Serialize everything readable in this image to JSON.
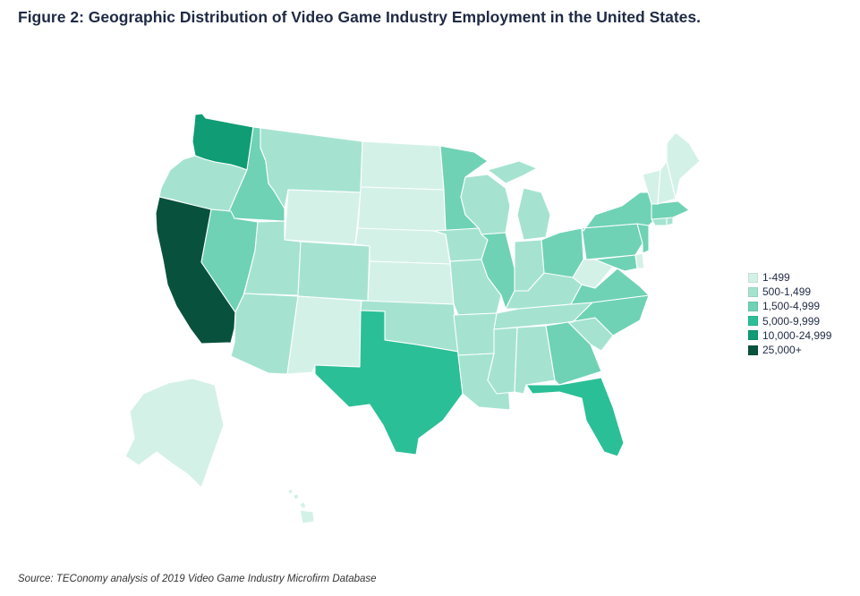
{
  "title": "Figure 2: Geographic Distribution of Video Game Industry Employment in the United States.",
  "source": "Source: TEConomy analysis of 2019 Video Game Industry Microfirm Database",
  "legend": [
    {
      "label": "1-499",
      "color": "#d4f1e8"
    },
    {
      "label": "500-1,499",
      "color": "#a5e3d0"
    },
    {
      "label": "1,500-4,999",
      "color": "#6fd2b5"
    },
    {
      "label": "5,000-9,999",
      "color": "#2bbf97"
    },
    {
      "label": "10,000-24,999",
      "color": "#109c74"
    },
    {
      "label": "25,000+",
      "color": "#08523d"
    }
  ],
  "states": {
    "WA": 4,
    "CA": 5,
    "TX": 3,
    "FL": 3,
    "OR": 1,
    "ID": 2,
    "NV": 2,
    "MN": 2,
    "IL": 2,
    "OH": 2,
    "NY": 2,
    "PA": 2,
    "NJ": 2,
    "MA": 2,
    "VA": 2,
    "NC": 2,
    "GA": 2,
    "MD": 2,
    "MT": 1,
    "UT": 1,
    "AZ": 1,
    "CO": 1,
    "OK": 1,
    "IA": 1,
    "MO": 1,
    "AR": 1,
    "LA": 1,
    "MS": 1,
    "AL": 1,
    "TN": 1,
    "KY": 1,
    "IN": 1,
    "MI": 1,
    "WI": 1,
    "SC": 1,
    "CT": 1,
    "RI": 1,
    "WY": 0,
    "ND": 0,
    "SD": 0,
    "NE": 0,
    "KS": 0,
    "NM": 0,
    "WV": 0,
    "ME": 0,
    "VT": 0,
    "NH": 0,
    "DE": 0,
    "AK": 0,
    "HI": 0
  }
}
